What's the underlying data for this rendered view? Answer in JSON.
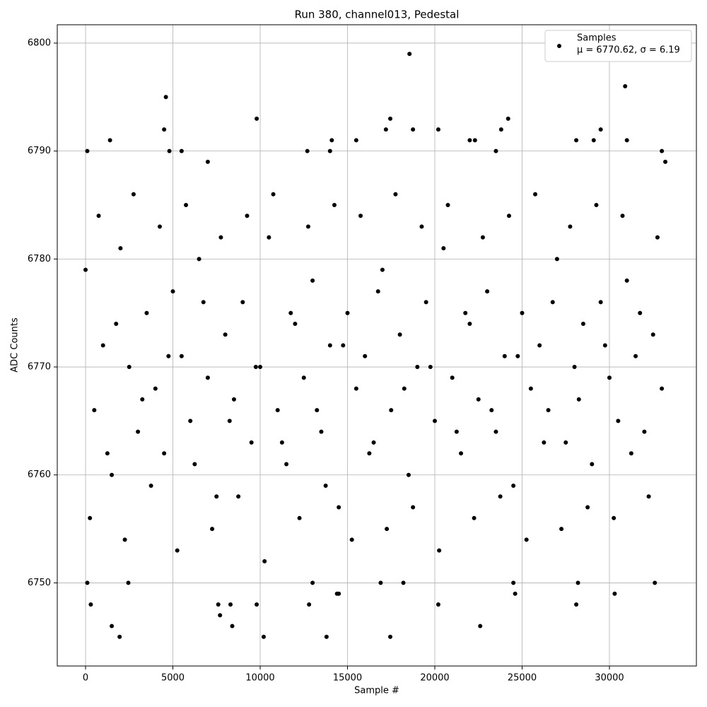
{
  "chart_data": {
    "type": "scatter",
    "title": "Run 380, channel013, Pedestal",
    "x_label": "Sample #",
    "y_label": "ADC Counts",
    "xlim": [
      -1620,
      34980
    ],
    "ylim": [
      6742.3,
      6801.7
    ],
    "xticks": [
      0,
      5000,
      10000,
      15000,
      20000,
      25000,
      30000
    ],
    "yticks": [
      6750,
      6760,
      6770,
      6780,
      6790,
      6800
    ],
    "grid": true,
    "legend": "upper right",
    "legend_note": "μ = 6770.62, σ = 6.19",
    "series": [
      {
        "name": "Samples",
        "color": "#000000",
        "x": [
          0,
          500,
          1000,
          1500,
          2000,
          2500,
          3000,
          3500,
          4000,
          4500,
          5000,
          5500,
          6000,
          6500,
          7000,
          7500,
          8000,
          8500,
          9000,
          9500,
          10000,
          10500,
          11000,
          11500,
          12000,
          12500,
          13000,
          13500,
          14000,
          14500,
          15000,
          15500,
          16000,
          16500,
          17000,
          17500,
          18000,
          18500,
          19000,
          19500,
          20000,
          20500,
          21000,
          21500,
          22000,
          22500,
          23000,
          23500,
          24000,
          24500,
          25000,
          25500,
          26000,
          26500,
          27000,
          27500,
          28000,
          28500,
          29000,
          29500,
          30000,
          30500,
          31000,
          31500,
          32000,
          32500,
          33000,
          250,
          750,
          1250,
          1750,
          2250,
          2750,
          3250,
          3750,
          4250,
          4750,
          5250,
          5750,
          6250,
          6750,
          7250,
          7750,
          8250,
          8750,
          9250,
          9750,
          10250,
          10750,
          11250,
          11750,
          12250,
          12750,
          13250,
          13750,
          14250,
          14750,
          15250,
          15750,
          16250,
          16750,
          17250,
          17750,
          18250,
          18750,
          19250,
          19750,
          20250,
          20750,
          21250,
          21750,
          22250,
          22750,
          23250,
          23750,
          24250,
          24750,
          25250,
          25750,
          26250,
          26750,
          27250,
          27750,
          28250,
          28750,
          29250,
          29750,
          30250,
          30750,
          31250,
          31750,
          32250,
          32750,
          100,
          100,
          300,
          1400,
          1500,
          1950,
          2450,
          4500,
          4600,
          4800,
          5500,
          7000,
          7600,
          7700,
          8300,
          8400,
          9800,
          9800,
          10200,
          12700,
          12800,
          13000,
          13800,
          14000,
          14100,
          14400,
          14500,
          15500,
          16900,
          17200,
          17450,
          17450,
          18200,
          18550,
          18750,
          20200,
          20200,
          22000,
          22300,
          22600,
          23500,
          23800,
          24200,
          24500,
          24600,
          28100,
          28100,
          28200,
          29100,
          29500,
          30300,
          30900,
          31000,
          32600,
          33000,
          33200
        ],
        "values": [
          6779,
          6766,
          6772,
          6760,
          6781,
          6770,
          6764,
          6775,
          6768,
          6762,
          6777,
          6771,
          6765,
          6780,
          6769,
          6758,
          6773,
          6767,
          6776,
          6763,
          6770,
          6782,
          6766,
          6761,
          6774,
          6769,
          6778,
          6764,
          6772,
          6757,
          6775,
          6768,
          6771,
          6763,
          6779,
          6766,
          6773,
          6760,
          6770,
          6776,
          6765,
          6781,
          6769,
          6762,
          6774,
          6767,
          6777,
          6764,
          6771,
          6759,
          6775,
          6768,
          6772,
          6766,
          6780,
          6763,
          6770,
          6774,
          6761,
          6776,
          6769,
          6765,
          6778,
          6771,
          6764,
          6773,
          6768,
          6756,
          6784,
          6762,
          6774,
          6754,
          6786,
          6767,
          6759,
          6783,
          6771,
          6753,
          6785,
          6761,
          6776,
          6755,
          6782,
          6765,
          6758,
          6784,
          6770,
          6752,
          6786,
          6763,
          6775,
          6756,
          6783,
          6766,
          6759,
          6785,
          6772,
          6754,
          6784,
          6762,
          6777,
          6755,
          6786,
          6768,
          6757,
          6783,
          6770,
          6753,
          6785,
          6764,
          6775,
          6756,
          6782,
          6766,
          6758,
          6784,
          6771,
          6754,
          6786,
          6763,
          6776,
          6755,
          6783,
          6767,
          6757,
          6785,
          6772,
          6756,
          6784,
          6762,
          6775,
          6758,
          6782,
          6790,
          6750,
          6748,
          6791,
          6746,
          6745,
          6750,
          6792,
          6795,
          6790,
          6790,
          6789,
          6748,
          6747,
          6748,
          6746,
          6793,
          6748,
          6745,
          6790,
          6748,
          6750,
          6745,
          6790,
          6791,
          6749,
          6749,
          6791,
          6750,
          6792,
          6793,
          6745,
          6750,
          6799,
          6792,
          6792,
          6748,
          6791,
          6791,
          6746,
          6790,
          6792,
          6793,
          6750,
          6749,
          6791,
          6748,
          6750,
          6791,
          6792,
          6749,
          6796,
          6791,
          6750,
          6790,
          6789
        ]
      }
    ]
  }
}
